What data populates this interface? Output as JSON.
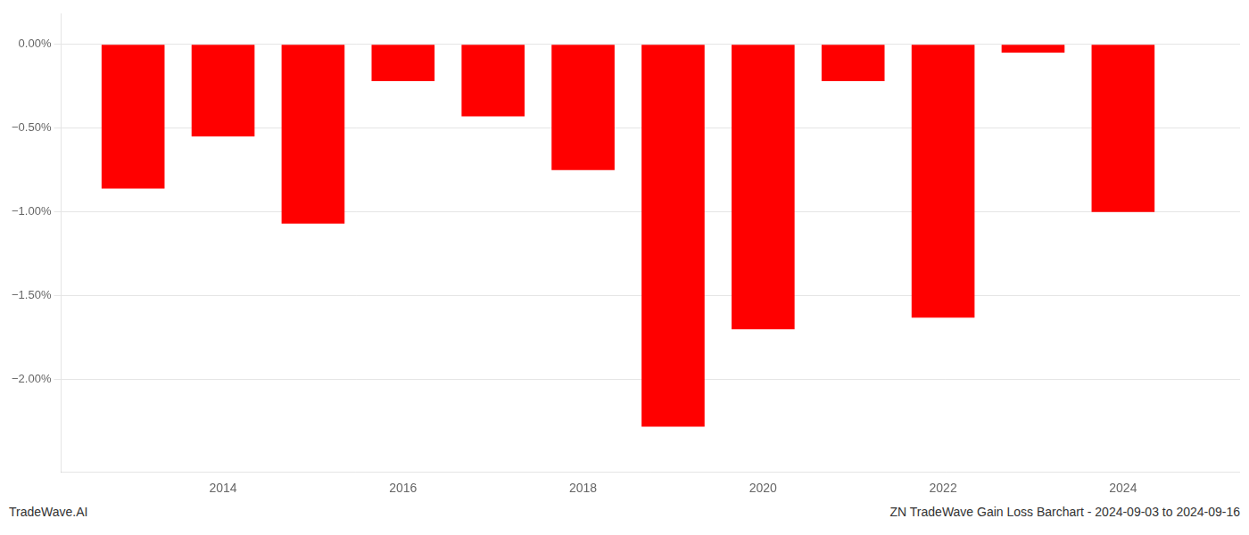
{
  "chart_data": {
    "type": "bar",
    "x": [
      2013,
      2014,
      2015,
      2016,
      2017,
      2018,
      2019,
      2020,
      2021,
      2022,
      2023,
      2024
    ],
    "values": [
      -0.0086,
      -0.0055,
      -0.0107,
      -0.0022,
      -0.0043,
      -0.0075,
      -0.0228,
      -0.017,
      -0.0022,
      -0.0163,
      -0.0005,
      -0.01
    ],
    "color": "#ff0000",
    "xlim": [
      2012.2,
      2025.3
    ],
    "xticks": [
      2014,
      2016,
      2018,
      2020,
      2022,
      2024
    ],
    "ylim": [
      -0.0255,
      0.0018
    ],
    "yticks": [
      {
        "value": 0.0,
        "label": "0.00%"
      },
      {
        "value": -0.005,
        "label": "−0.50%"
      },
      {
        "value": -0.01,
        "label": "−1.00%"
      },
      {
        "value": -0.015,
        "label": "−1.50%"
      },
      {
        "value": -0.02,
        "label": "−2.00%"
      }
    ],
    "grid": "y",
    "annotations": [
      "TradeWave.AI",
      "ZN TradeWave Gain Loss Barchart - 2024-09-03 to 2024-09-16"
    ]
  }
}
